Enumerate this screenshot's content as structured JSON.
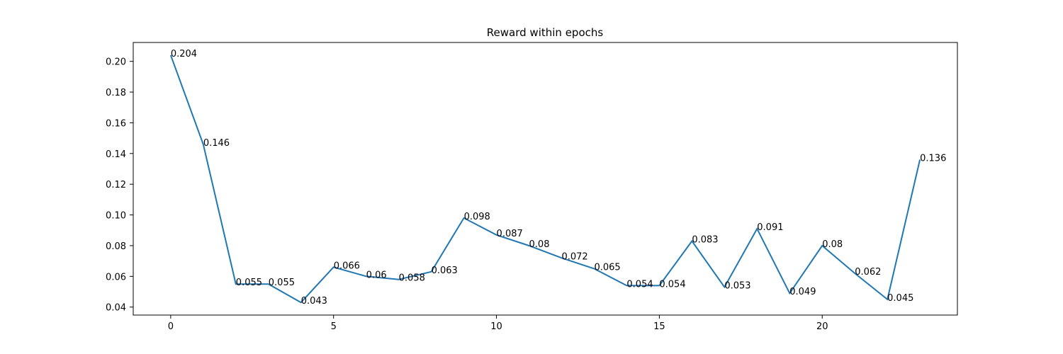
{
  "chart_data": {
    "type": "line",
    "title": "Reward within epochs",
    "xlabel": "",
    "ylabel": "",
    "x": [
      0,
      1,
      2,
      3,
      4,
      5,
      6,
      7,
      8,
      9,
      10,
      11,
      12,
      13,
      14,
      15,
      16,
      17,
      18,
      19,
      20,
      21,
      22,
      23
    ],
    "series": [
      {
        "values": [
          0.204,
          0.146,
          0.055,
          0.055,
          0.043,
          0.066,
          0.06,
          0.058,
          0.063,
          0.098,
          0.087,
          0.08,
          0.072,
          0.065,
          0.054,
          0.054,
          0.083,
          0.053,
          0.091,
          0.049,
          0.08,
          0.062,
          0.045,
          0.136
        ],
        "labels": [
          "0.204",
          "0.146",
          "0.055",
          "0.055",
          "0.043",
          "0.066",
          "0.06",
          "0.058",
          "0.063",
          "0.098",
          "0.087",
          "0.08",
          "0.072",
          "0.065",
          "0.054",
          "0.054",
          "0.083",
          "0.053",
          "0.091",
          "0.049",
          "0.08",
          "0.062",
          "0.045",
          "0.136"
        ],
        "color": "#1f77b4"
      }
    ],
    "xticks": [
      0,
      5,
      10,
      15,
      20
    ],
    "xtick_labels": [
      "0",
      "5",
      "10",
      "15",
      "20"
    ],
    "yticks": [
      0.04,
      0.06,
      0.08,
      0.1,
      0.12,
      0.14,
      0.16,
      0.18,
      0.2
    ],
    "ytick_labels": [
      "0.04",
      "0.06",
      "0.08",
      "0.10",
      "0.12",
      "0.14",
      "0.16",
      "0.18",
      "0.20"
    ],
    "xlim": [
      -1.15,
      24.15
    ],
    "ylim": [
      0.0348,
      0.2123
    ],
    "grid": false,
    "legend": "none"
  }
}
